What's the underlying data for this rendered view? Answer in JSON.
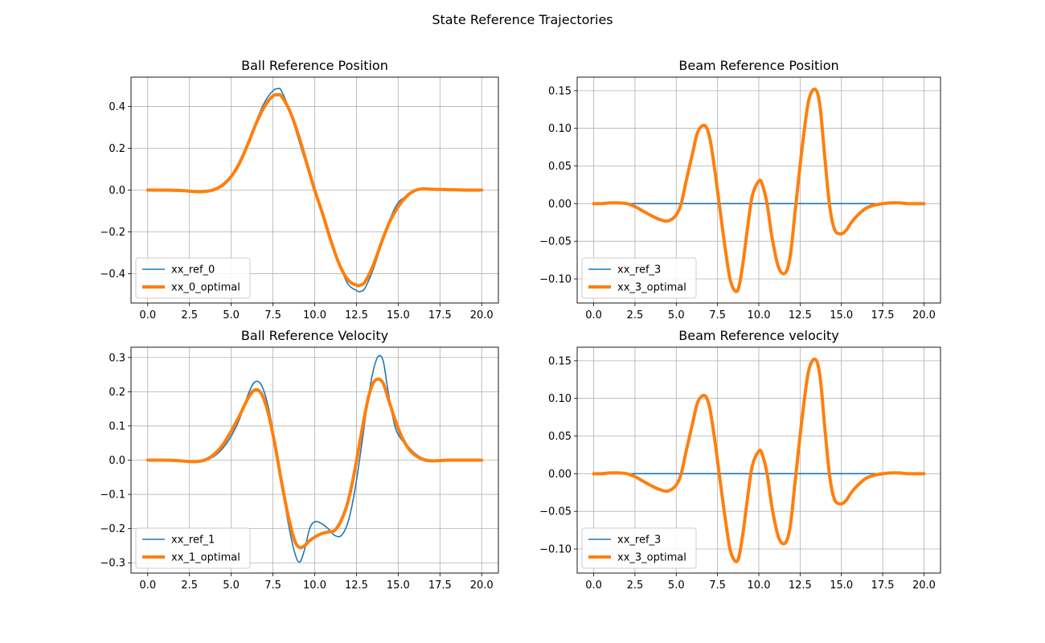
{
  "figure": {
    "title": "State Reference Trajectories"
  },
  "colors": {
    "ref": "#1f77b4",
    "optimal": "#ff7f0e",
    "grid": "#b0b0b0",
    "axes": "#000000"
  },
  "chart_data": [
    {
      "type": "line",
      "title": "Ball Reference Position",
      "xlim": [
        -1.0,
        21.0
      ],
      "ylim": [
        -0.54,
        0.54
      ],
      "xticks": [
        0,
        2.5,
        5,
        7.5,
        10,
        12.5,
        15,
        17.5,
        20
      ],
      "xtick_labels": [
        "0.0",
        "2.5",
        "5.0",
        "7.5",
        "10.0",
        "12.5",
        "15.0",
        "17.5",
        "20.0"
      ],
      "yticks": [
        -0.4,
        -0.2,
        0.0,
        0.2,
        0.4
      ],
      "ytick_labels": [
        "−0.4",
        "−0.2",
        "0.0",
        "0.2",
        "0.4"
      ],
      "grid": true,
      "legend": "lower left",
      "series": [
        {
          "name": "xx_ref_0",
          "role": "ref",
          "x": [
            0,
            1,
            2,
            3,
            3.5,
            4,
            4.5,
            5,
            5.5,
            6,
            6.5,
            7,
            7.5,
            7.8,
            8,
            8.5,
            9,
            9.5,
            10,
            10.5,
            11,
            11.5,
            12,
            12.5,
            12.7,
            13,
            13.5,
            14,
            14.5,
            15,
            15.5,
            16,
            16.5,
            17,
            18,
            19,
            20
          ],
          "y": [
            0.0,
            0.0,
            0.0,
            -0.005,
            -0.005,
            0.0,
            0.02,
            0.06,
            0.12,
            0.22,
            0.33,
            0.42,
            0.475,
            0.485,
            0.475,
            0.38,
            0.25,
            0.12,
            0.0,
            -0.12,
            -0.24,
            -0.36,
            -0.45,
            -0.48,
            -0.485,
            -0.47,
            -0.38,
            -0.26,
            -0.14,
            -0.06,
            -0.03,
            -0.005,
            0.003,
            0.003,
            0.002,
            0.0,
            0.0
          ]
        },
        {
          "name": "xx_0_optimal",
          "role": "optimal",
          "x": [
            0,
            1,
            2,
            3,
            3.5,
            4,
            4.5,
            5,
            5.5,
            6,
            6.5,
            7,
            7.5,
            7.8,
            8,
            8.5,
            9,
            9.5,
            10,
            10.5,
            11,
            11.5,
            12,
            12.5,
            12.7,
            13,
            13.5,
            14,
            14.5,
            15,
            15.5,
            16,
            16.5,
            17,
            18,
            19,
            20
          ],
          "y": [
            0.0,
            0.0,
            -0.002,
            -0.008,
            -0.006,
            0.003,
            0.025,
            0.065,
            0.13,
            0.22,
            0.32,
            0.4,
            0.45,
            0.455,
            0.45,
            0.38,
            0.27,
            0.135,
            0.0,
            -0.12,
            -0.25,
            -0.36,
            -0.43,
            -0.455,
            -0.455,
            -0.44,
            -0.36,
            -0.25,
            -0.15,
            -0.08,
            -0.03,
            -0.002,
            0.006,
            0.004,
            0.002,
            0.0,
            0.0
          ]
        }
      ]
    },
    {
      "type": "line",
      "title": "Beam Reference Position",
      "xlim": [
        -1.0,
        21.0
      ],
      "ylim": [
        -0.132,
        0.168
      ],
      "xticks": [
        0,
        2.5,
        5,
        7.5,
        10,
        12.5,
        15,
        17.5,
        20
      ],
      "xtick_labels": [
        "0.0",
        "2.5",
        "5.0",
        "7.5",
        "10.0",
        "12.5",
        "15.0",
        "17.5",
        "20.0"
      ],
      "yticks": [
        -0.1,
        -0.05,
        0.0,
        0.05,
        0.1,
        0.15
      ],
      "ytick_labels": [
        "−0.10",
        "−0.05",
        "0.00",
        "0.05",
        "0.10",
        "0.15"
      ],
      "grid": true,
      "legend": "lower left",
      "series": [
        {
          "name": "xx_ref_3",
          "role": "ref",
          "x": [
            0,
            20
          ],
          "y": [
            0,
            0
          ]
        },
        {
          "name": "xx_3_optimal",
          "role": "optimal",
          "x": [
            0,
            0.5,
            1,
            1.5,
            2,
            2.5,
            3,
            3.5,
            4,
            4.5,
            5,
            5.3,
            5.6,
            6,
            6.3,
            6.7,
            7,
            7.3,
            7.6,
            8,
            8.3,
            8.7,
            9,
            9.3,
            9.6,
            10,
            10.2,
            10.5,
            10.8,
            11.2,
            11.6,
            11.9,
            12.2,
            12.6,
            13,
            13.4,
            13.7,
            14,
            14.3,
            14.6,
            15,
            15.3,
            15.6,
            16,
            16.5,
            17,
            17.5,
            18,
            18.5,
            19,
            19.5,
            20
          ],
          "y": [
            0.0,
            0.0,
            0.001,
            0.001,
            0.0,
            -0.004,
            -0.01,
            -0.016,
            -0.021,
            -0.023,
            -0.015,
            0.0,
            0.03,
            0.068,
            0.095,
            0.104,
            0.09,
            0.05,
            0.0,
            -0.065,
            -0.104,
            -0.116,
            -0.085,
            -0.035,
            0.01,
            0.03,
            0.026,
            0.0,
            -0.045,
            -0.085,
            -0.092,
            -0.07,
            -0.01,
            0.07,
            0.135,
            0.152,
            0.13,
            0.06,
            -0.005,
            -0.035,
            -0.04,
            -0.035,
            -0.025,
            -0.015,
            -0.006,
            -0.002,
            0.0,
            0.001,
            0.001,
            0.0,
            0.0,
            0.0
          ]
        }
      ]
    },
    {
      "type": "line",
      "title": "Ball Reference Velocity",
      "xlim": [
        -1.0,
        21.0
      ],
      "ylim": [
        -0.33,
        0.33
      ],
      "xticks": [
        0,
        2.5,
        5,
        7.5,
        10,
        12.5,
        15,
        17.5,
        20
      ],
      "xtick_labels": [
        "0.0",
        "2.5",
        "5.0",
        "7.5",
        "10.0",
        "12.5",
        "15.0",
        "17.5",
        "20.0"
      ],
      "yticks": [
        -0.3,
        -0.2,
        -0.1,
        0.0,
        0.1,
        0.2,
        0.3
      ],
      "ytick_labels": [
        "−0.3",
        "−0.2",
        "−0.1",
        "0.0",
        "0.1",
        "0.2",
        "0.3"
      ],
      "grid": true,
      "legend": "lower left",
      "series": [
        {
          "name": "xx_ref_1",
          "role": "ref",
          "x": [
            0,
            1,
            2,
            2.5,
            3,
            3.5,
            4,
            4.5,
            5,
            5.5,
            6,
            6.4,
            6.8,
            7.2,
            7.6,
            8,
            8.4,
            8.8,
            9.1,
            9.4,
            9.7,
            10,
            10.4,
            10.8,
            11.2,
            11.6,
            12,
            12.4,
            12.8,
            13.2,
            13.5,
            13.8,
            14.1,
            14.4,
            14.8,
            15.2,
            15.6,
            16,
            16.5,
            17,
            18,
            19,
            20
          ],
          "y": [
            0.0,
            0.0,
            -0.002,
            -0.004,
            -0.004,
            0.0,
            0.012,
            0.035,
            0.07,
            0.12,
            0.19,
            0.228,
            0.22,
            0.16,
            0.06,
            -0.06,
            -0.18,
            -0.27,
            -0.298,
            -0.26,
            -0.2,
            -0.18,
            -0.185,
            -0.2,
            -0.22,
            -0.22,
            -0.18,
            -0.09,
            0.04,
            0.18,
            0.26,
            0.303,
            0.29,
            0.2,
            0.1,
            0.06,
            0.04,
            0.02,
            0.005,
            0.0,
            0.0,
            0.0,
            0.0
          ]
        },
        {
          "name": "xx_1_optimal",
          "role": "optimal",
          "x": [
            0,
            1,
            2,
            2.5,
            3,
            3.5,
            4,
            4.5,
            5,
            5.5,
            6,
            6.4,
            6.8,
            7.2,
            7.6,
            8,
            8.4,
            8.8,
            9.1,
            9.4,
            9.7,
            10,
            10.4,
            10.8,
            11.2,
            11.6,
            12,
            12.4,
            12.8,
            13.2,
            13.5,
            13.8,
            14.1,
            14.4,
            14.8,
            15.2,
            15.6,
            16,
            16.5,
            17,
            18,
            19,
            20
          ],
          "y": [
            0.0,
            0.0,
            -0.002,
            -0.004,
            -0.004,
            0.002,
            0.018,
            0.045,
            0.085,
            0.13,
            0.18,
            0.205,
            0.195,
            0.14,
            0.05,
            -0.06,
            -0.16,
            -0.235,
            -0.255,
            -0.25,
            -0.235,
            -0.225,
            -0.215,
            -0.21,
            -0.205,
            -0.175,
            -0.12,
            -0.03,
            0.08,
            0.18,
            0.225,
            0.237,
            0.225,
            0.18,
            0.12,
            0.07,
            0.035,
            0.015,
            0.002,
            -0.002,
            0.0,
            0.0,
            0.0
          ]
        }
      ]
    },
    {
      "type": "line",
      "title": "Beam Reference velocity",
      "xlim": [
        -1.0,
        21.0
      ],
      "ylim": [
        -0.132,
        0.168
      ],
      "xticks": [
        0,
        2.5,
        5,
        7.5,
        10,
        12.5,
        15,
        17.5,
        20
      ],
      "xtick_labels": [
        "0.0",
        "2.5",
        "5.0",
        "7.5",
        "10.0",
        "12.5",
        "15.0",
        "17.5",
        "20.0"
      ],
      "yticks": [
        -0.1,
        -0.05,
        0.0,
        0.05,
        0.1,
        0.15
      ],
      "ytick_labels": [
        "−0.10",
        "−0.05",
        "0.00",
        "0.05",
        "0.10",
        "0.15"
      ],
      "grid": true,
      "legend": "lower left",
      "series": [
        {
          "name": "xx_ref_3",
          "role": "ref",
          "x": [
            0,
            20
          ],
          "y": [
            0,
            0
          ]
        },
        {
          "name": "xx_3_optimal",
          "role": "optimal",
          "x": [
            0,
            0.5,
            1,
            1.5,
            2,
            2.5,
            3,
            3.5,
            4,
            4.5,
            5,
            5.3,
            5.6,
            6,
            6.3,
            6.7,
            7,
            7.3,
            7.6,
            8,
            8.3,
            8.7,
            9,
            9.3,
            9.6,
            10,
            10.2,
            10.5,
            10.8,
            11.2,
            11.6,
            11.9,
            12.2,
            12.6,
            13,
            13.4,
            13.7,
            14,
            14.3,
            14.6,
            15,
            15.3,
            15.6,
            16,
            16.5,
            17,
            17.5,
            18,
            18.5,
            19,
            19.5,
            20
          ],
          "y": [
            0.0,
            0.0,
            0.001,
            0.001,
            0.0,
            -0.004,
            -0.01,
            -0.016,
            -0.021,
            -0.023,
            -0.015,
            0.0,
            0.03,
            0.068,
            0.095,
            0.104,
            0.09,
            0.05,
            0.0,
            -0.065,
            -0.104,
            -0.116,
            -0.085,
            -0.035,
            0.01,
            0.03,
            0.026,
            0.0,
            -0.045,
            -0.085,
            -0.092,
            -0.07,
            -0.01,
            0.07,
            0.135,
            0.152,
            0.13,
            0.06,
            -0.005,
            -0.035,
            -0.04,
            -0.035,
            -0.025,
            -0.015,
            -0.006,
            -0.002,
            0.0,
            0.001,
            0.001,
            0.0,
            0.0,
            0.0
          ]
        }
      ]
    }
  ]
}
